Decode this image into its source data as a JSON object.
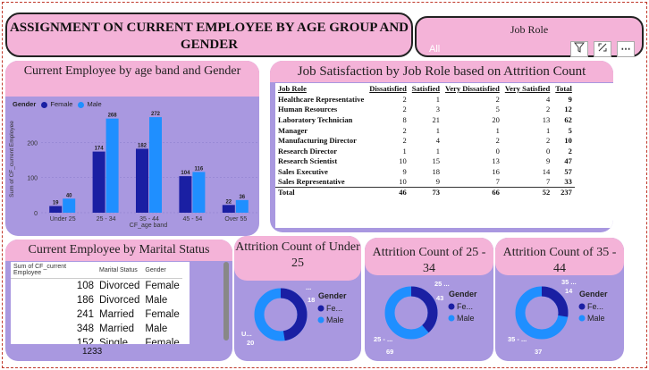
{
  "header": {
    "title": "ASSIGNMENT ON CURRENT EMPLOYEE BY AGE GROUP AND GENDER"
  },
  "slicer": {
    "label": "Job Role",
    "value": "All"
  },
  "colors": {
    "female": "#1a1fa3",
    "male": "#1f8fff",
    "panel": "#a998e0",
    "header": "#f4b3d8"
  },
  "icons": [
    "filter-icon",
    "focus-mode-icon",
    "more-options-icon"
  ],
  "age_chart": {
    "title": "Current Employee by age band and Gender",
    "legend_title": "Gender",
    "legend": [
      "Female",
      "Male"
    ],
    "ylabel": "Sum of CF_current Employee",
    "xlabel": "CF_age band"
  },
  "chart_data": {
    "type": "bar",
    "categories": [
      "Under 25",
      "25 - 34",
      "35 - 44",
      "45 - 54",
      "Over 55"
    ],
    "series": [
      {
        "name": "Female",
        "values": [
          19,
          174,
          182,
          104,
          22
        ]
      },
      {
        "name": "Male",
        "values": [
          40,
          268,
          272,
          116,
          36
        ]
      }
    ],
    "yticks": [
      0,
      100,
      200
    ],
    "ylim": [
      0,
      290
    ],
    "grid": true,
    "legend_position": "top-left"
  },
  "job_satisfaction": {
    "title": "Job Satisfaction by Job Role based on Attrition Count",
    "columns": [
      "Job Role",
      "Dissatisfied",
      "Satisfied",
      "Very Dissatisfied",
      "Very Satisfied",
      "Total"
    ],
    "rows": [
      [
        "Healthcare Representative",
        "2",
        "1",
        "2",
        "4",
        "9"
      ],
      [
        "Human Resources",
        "2",
        "3",
        "5",
        "2",
        "12"
      ],
      [
        "Laboratory Technician",
        "8",
        "21",
        "20",
        "13",
        "62"
      ],
      [
        "Manager",
        "2",
        "1",
        "1",
        "1",
        "5"
      ],
      [
        "Manufacturing Director",
        "2",
        "4",
        "2",
        "2",
        "10"
      ],
      [
        "Research Director",
        "1",
        "1",
        "0",
        "0",
        "2"
      ],
      [
        "Research Scientist",
        "10",
        "15",
        "13",
        "9",
        "47"
      ],
      [
        "Sales Executive",
        "9",
        "18",
        "16",
        "14",
        "57"
      ],
      [
        "Sales Representative",
        "10",
        "9",
        "7",
        "7",
        "33"
      ],
      [
        "Total",
        "46",
        "73",
        "66",
        "52",
        "237"
      ]
    ]
  },
  "marital": {
    "title": "Current Employee by Marital Status",
    "columns": [
      "Sum of CF_current Employee",
      "Marital Status",
      "Gender"
    ],
    "rows": [
      [
        "108",
        "Divorced",
        "Female"
      ],
      [
        "186",
        "Divorced",
        "Male"
      ],
      [
        "241",
        "Married",
        "Female"
      ],
      [
        "348",
        "Married",
        "Male"
      ],
      [
        "152",
        "Single",
        "Female"
      ]
    ],
    "total": "1233"
  },
  "donuts": [
    {
      "title": "Attrition Count of Under 25",
      "legend_title": "Gender",
      "legend": [
        "Fe...",
        "Male"
      ],
      "female": 18,
      "male": 20,
      "label_female": "18",
      "label_male": "20",
      "label_top": "...",
      "label_left": "U..."
    },
    {
      "title": "Attrition Count of 25 - 34",
      "legend_title": "Gender",
      "legend": [
        "Fe...",
        "Male"
      ],
      "female": 43,
      "male": 69,
      "label_female": "43",
      "label_male": "69",
      "label_top": "25 ...",
      "label_left": "25 - ..."
    },
    {
      "title": "Attrition Count of 35 - 44",
      "legend_title": "Gender",
      "legend": [
        "Fe...",
        "Male"
      ],
      "female": 14,
      "male": 37,
      "label_female": "35 ...",
      "label_male": "37",
      "label_top": "14",
      "label_left": "35 - ..."
    }
  ]
}
